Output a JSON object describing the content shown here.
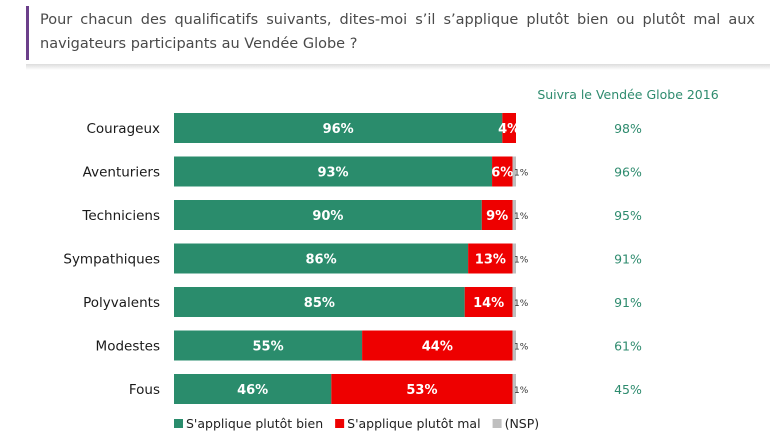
{
  "header": {
    "question": "Pour chacun des qualificatifs suivants, dites-moi s’il s’applique plutôt bien ou plutôt mal aux navigateurs participants au Vendée Globe ?"
  },
  "chart_data": {
    "type": "bar",
    "orientation": "horizontal",
    "stacked": true,
    "categories": [
      "Courageux",
      "Aventuriers",
      "Techniciens",
      "Sympathiques",
      "Polyvalents",
      "Modestes",
      "Fous"
    ],
    "series": [
      {
        "name": "S'applique plutôt bien",
        "color": "#2a8c6c",
        "values": [
          96,
          93,
          90,
          86,
          85,
          55,
          46
        ],
        "labels": [
          "96%",
          "93%",
          "90%",
          "86%",
          "85%",
          "55%",
          "46%"
        ]
      },
      {
        "name": "S'applique plutôt mal",
        "color": "#ee0000",
        "values": [
          4,
          6,
          9,
          13,
          14,
          44,
          53
        ],
        "labels": [
          "4%",
          "6%",
          "9%",
          "13%",
          "14%",
          "44%",
          "53%"
        ]
      },
      {
        "name": "(NSP)",
        "color": "#bfbfbf",
        "values": [
          0,
          1,
          1,
          1,
          1,
          1,
          1
        ],
        "labels": [
          "",
          "1%",
          "1%",
          "1%",
          "1%",
          "1%",
          "1%"
        ]
      }
    ],
    "xlim": [
      0,
      100
    ],
    "legend_position": "bottom",
    "side_column": {
      "header": "Suivra le Vendée Globe 2016",
      "values": [
        "98%",
        "96%",
        "95%",
        "91%",
        "91%",
        "61%",
        "45%"
      ]
    },
    "colors": {
      "green": "#2a8c6c",
      "red": "#ee0000",
      "gray": "#bfbfbf",
      "side_text": "#2e8b6e"
    }
  }
}
